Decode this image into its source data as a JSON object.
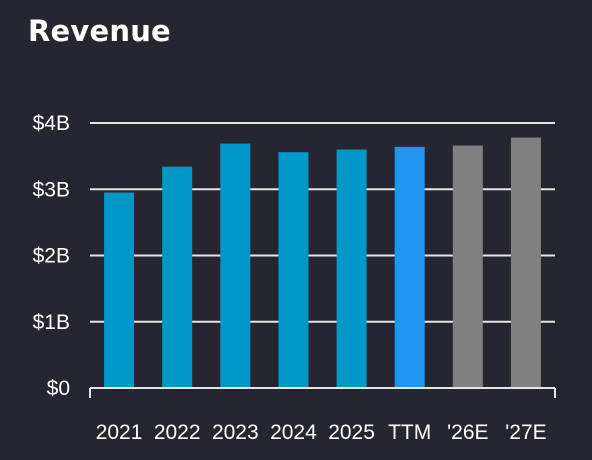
{
  "chart_data": {
    "type": "bar",
    "title": "Revenue",
    "xlabel": "",
    "ylabel": "",
    "categories": [
      "2021",
      "2022",
      "2023",
      "2024",
      "2025",
      "TTM",
      "'26E",
      "'27E"
    ],
    "values": [
      2.95,
      3.34,
      3.69,
      3.56,
      3.6,
      3.64,
      3.66,
      3.78
    ],
    "unit": "billions USD",
    "ylim": [
      0,
      4
    ],
    "yticks": [
      0,
      1,
      2,
      3,
      4
    ],
    "ytick_labels": [
      "$0",
      "$1B",
      "$2B",
      "$3B",
      "$4B"
    ],
    "grid": "horizontal",
    "bar_colors": [
      "#0098c8",
      "#0098c8",
      "#0098c8",
      "#0098c8",
      "#0098c8",
      "#2196f0",
      "#808080",
      "#808080"
    ]
  },
  "colors": {
    "background": "#262630",
    "grid": "#e6e6e6",
    "text": "#ffffff"
  }
}
